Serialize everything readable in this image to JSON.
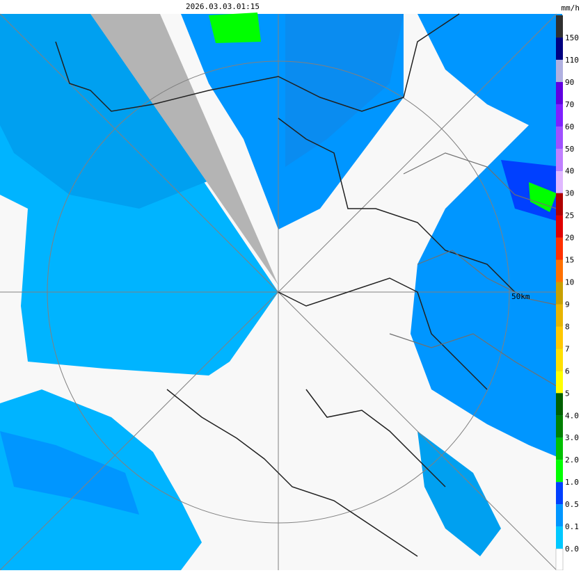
{
  "timestamp": "2026.03.03.01:15",
  "unit": "mm/h",
  "range_label": "50km",
  "scale": [
    {
      "label": "0.0",
      "color": "#00c8ff"
    },
    {
      "label": "0.1",
      "color": "#0096ff"
    },
    {
      "label": "0.5",
      "color": "#0040ff"
    },
    {
      "label": "1.0",
      "color": "#00ff00"
    },
    {
      "label": "2.0",
      "color": "#00c000"
    },
    {
      "label": "3.0",
      "color": "#008000"
    },
    {
      "label": "4.0",
      "color": "#006000"
    },
    {
      "label": "5",
      "color": "#ffff00"
    },
    {
      "label": "6",
      "color": "#ffe000"
    },
    {
      "label": "7",
      "color": "#ffc800"
    },
    {
      "label": "8",
      "color": "#e8b400"
    },
    {
      "label": "9",
      "color": "#c8a000"
    },
    {
      "label": "10",
      "color": "#ff7000"
    },
    {
      "label": "15",
      "color": "#ff3000"
    },
    {
      "label": "20",
      "color": "#e00000"
    },
    {
      "label": "25",
      "color": "#b00000"
    },
    {
      "label": "30",
      "color": "#e0b8ff"
    },
    {
      "label": "40",
      "color": "#c080ff"
    },
    {
      "label": "50",
      "color": "#a050ff"
    },
    {
      "label": "60",
      "color": "#8020ff"
    },
    {
      "label": "70",
      "color": "#6000e0"
    },
    {
      "label": "90",
      "color": "#b0b0e0"
    },
    {
      "label": "110",
      "color": "#000080"
    },
    {
      "label": "150",
      "color": "#303030"
    }
  ]
}
